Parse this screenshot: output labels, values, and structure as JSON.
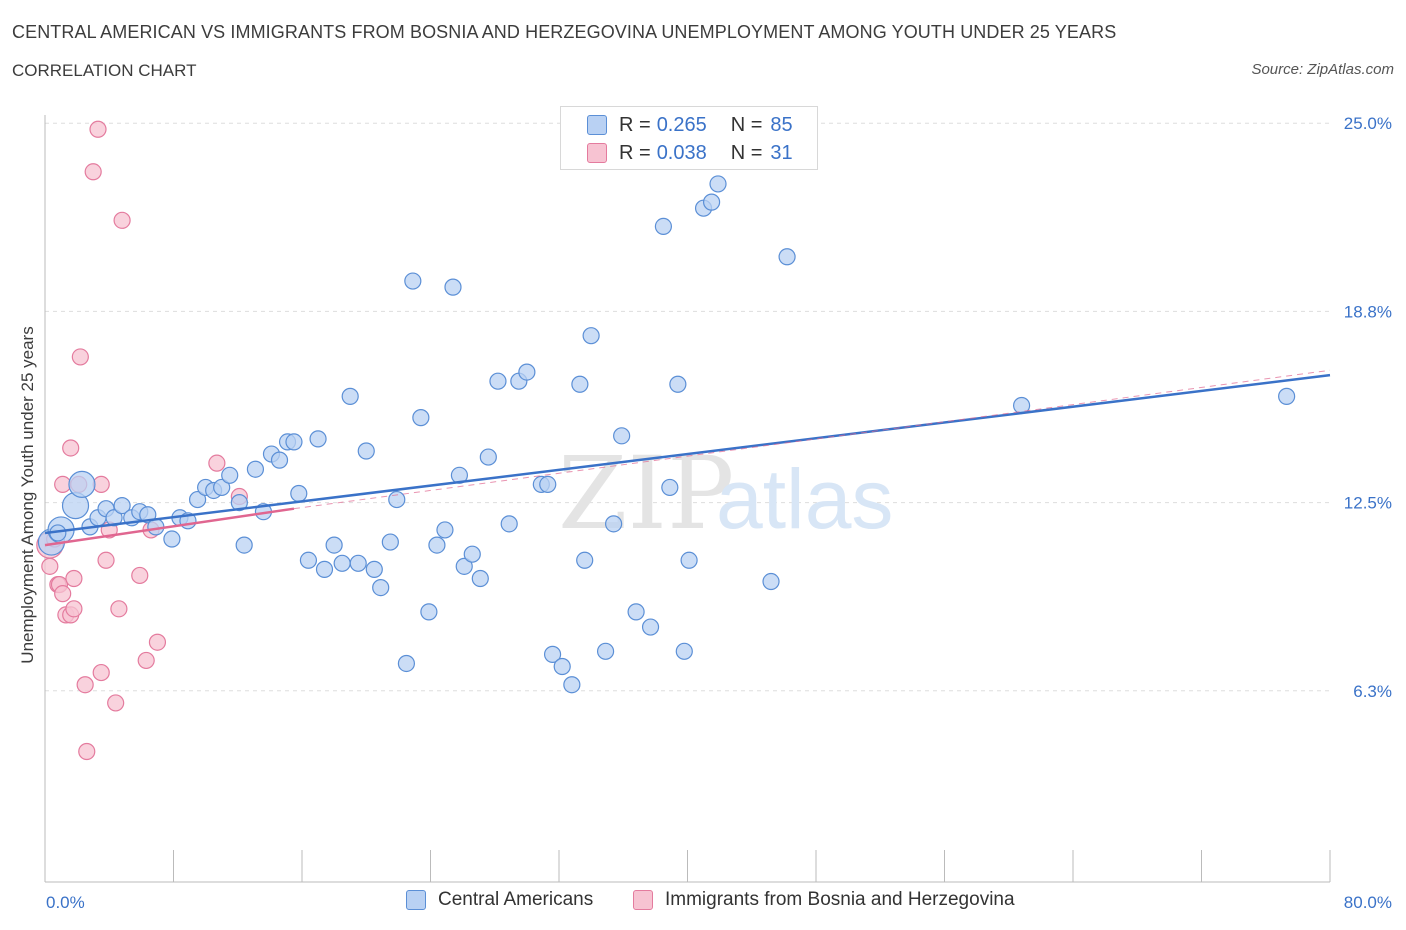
{
  "header": {
    "title": "CENTRAL AMERICAN VS IMMIGRANTS FROM BOSNIA AND HERZEGOVINA UNEMPLOYMENT AMONG YOUTH UNDER 25 YEARS",
    "subtitle": "CORRELATION CHART",
    "source": "Source: ZipAtlas.com"
  },
  "legend": {
    "rows": [
      {
        "r_label": "R =",
        "r_value": "0.265",
        "n_label": "N =",
        "n_value": "85"
      },
      {
        "r_label": "R =",
        "r_value": "0.038",
        "n_label": "N =",
        "n_value": "31"
      }
    ]
  },
  "bottom_legend": {
    "items": [
      "Central Americans",
      "Immigrants from Bosnia and Herzegovina"
    ]
  },
  "colors": {
    "blue_fill": "#b9d1f3",
    "blue_stroke": "#5b8fd6",
    "blue_line": "#3a72c8",
    "pink_fill": "#f7c3d2",
    "pink_stroke": "#e47b9e",
    "pink_line": "#e06690",
    "grid": "#dddddd",
    "axis_text": "#3a72c8"
  },
  "chart_data": {
    "type": "scatter",
    "title": "CENTRAL AMERICAN VS IMMIGRANTS FROM BOSNIA AND HERZEGOVINA UNEMPLOYMENT AMONG YOUTH UNDER 25 YEARS",
    "xlabel": "",
    "ylabel": "Unemployment Among Youth under 25 years",
    "xlim": [
      0,
      80
    ],
    "ylim": [
      0,
      25.6
    ],
    "x_tick_labels": [
      "0.0%",
      "80.0%"
    ],
    "y_ticks": [
      6.3,
      12.5,
      18.8,
      25.0
    ],
    "y_tick_labels": [
      "6.3%",
      "12.5%",
      "18.8%",
      "25.0%"
    ],
    "watermark": "ZIPatlas",
    "series": [
      {
        "name": "Central Americans",
        "R": 0.265,
        "N": 85,
        "trend": {
          "x": [
            0,
            80
          ],
          "y": [
            11.5,
            16.7
          ]
        },
        "points": [
          {
            "x": 0.4,
            "y": 11.2,
            "big": true
          },
          {
            "x": 1.0,
            "y": 11.6,
            "big": true
          },
          {
            "x": 1.9,
            "y": 12.4,
            "big": true
          },
          {
            "x": 2.3,
            "y": 13.1,
            "big": true
          },
          {
            "x": 0.8,
            "y": 11.5
          },
          {
            "x": 2.8,
            "y": 11.7
          },
          {
            "x": 3.3,
            "y": 12.0
          },
          {
            "x": 3.8,
            "y": 12.3
          },
          {
            "x": 4.3,
            "y": 12.0
          },
          {
            "x": 4.8,
            "y": 12.4
          },
          {
            "x": 5.4,
            "y": 12.0
          },
          {
            "x": 5.9,
            "y": 12.2
          },
          {
            "x": 6.4,
            "y": 12.1
          },
          {
            "x": 6.9,
            "y": 11.7
          },
          {
            "x": 7.9,
            "y": 11.3
          },
          {
            "x": 8.4,
            "y": 12.0
          },
          {
            "x": 8.9,
            "y": 11.9
          },
          {
            "x": 9.5,
            "y": 12.6
          },
          {
            "x": 10.0,
            "y": 13.0
          },
          {
            "x": 10.5,
            "y": 12.9
          },
          {
            "x": 11.0,
            "y": 13.0
          },
          {
            "x": 11.5,
            "y": 13.4
          },
          {
            "x": 12.1,
            "y": 12.5
          },
          {
            "x": 12.4,
            "y": 11.1
          },
          {
            "x": 13.1,
            "y": 13.6
          },
          {
            "x": 13.6,
            "y": 12.2
          },
          {
            "x": 14.1,
            "y": 14.1
          },
          {
            "x": 14.6,
            "y": 13.9
          },
          {
            "x": 15.1,
            "y": 14.5
          },
          {
            "x": 15.5,
            "y": 14.5
          },
          {
            "x": 15.8,
            "y": 12.8
          },
          {
            "x": 16.4,
            "y": 10.6
          },
          {
            "x": 17.0,
            "y": 14.6
          },
          {
            "x": 17.4,
            "y": 10.3
          },
          {
            "x": 18.0,
            "y": 11.1
          },
          {
            "x": 18.5,
            "y": 10.5
          },
          {
            "x": 19.0,
            "y": 16.0
          },
          {
            "x": 19.5,
            "y": 10.5
          },
          {
            "x": 20.0,
            "y": 14.2
          },
          {
            "x": 20.5,
            "y": 10.3
          },
          {
            "x": 20.9,
            "y": 9.7
          },
          {
            "x": 21.5,
            "y": 11.2
          },
          {
            "x": 21.9,
            "y": 12.6
          },
          {
            "x": 22.5,
            "y": 7.2
          },
          {
            "x": 22.9,
            "y": 19.8
          },
          {
            "x": 23.4,
            "y": 15.3
          },
          {
            "x": 23.9,
            "y": 8.9
          },
          {
            "x": 24.4,
            "y": 11.1
          },
          {
            "x": 24.9,
            "y": 11.6
          },
          {
            "x": 25.4,
            "y": 19.6
          },
          {
            "x": 25.8,
            "y": 13.4
          },
          {
            "x": 26.1,
            "y": 10.4
          },
          {
            "x": 26.6,
            "y": 10.8
          },
          {
            "x": 27.1,
            "y": 10.0
          },
          {
            "x": 27.6,
            "y": 14.0
          },
          {
            "x": 28.2,
            "y": 16.5
          },
          {
            "x": 28.9,
            "y": 11.8
          },
          {
            "x": 29.5,
            "y": 16.5
          },
          {
            "x": 30.0,
            "y": 16.8
          },
          {
            "x": 30.9,
            "y": 13.1
          },
          {
            "x": 31.3,
            "y": 13.1
          },
          {
            "x": 31.6,
            "y": 7.5
          },
          {
            "x": 32.2,
            "y": 7.1
          },
          {
            "x": 32.8,
            "y": 6.5
          },
          {
            "x": 33.3,
            "y": 16.4
          },
          {
            "x": 33.6,
            "y": 10.6
          },
          {
            "x": 34.0,
            "y": 18.0
          },
          {
            "x": 34.9,
            "y": 7.6
          },
          {
            "x": 35.4,
            "y": 11.8
          },
          {
            "x": 35.9,
            "y": 14.7
          },
          {
            "x": 36.8,
            "y": 8.9
          },
          {
            "x": 37.7,
            "y": 8.4
          },
          {
            "x": 38.5,
            "y": 21.6
          },
          {
            "x": 38.9,
            "y": 13.0
          },
          {
            "x": 39.4,
            "y": 16.4
          },
          {
            "x": 39.8,
            "y": 7.6
          },
          {
            "x": 40.1,
            "y": 10.6
          },
          {
            "x": 41.0,
            "y": 22.2
          },
          {
            "x": 41.5,
            "y": 22.4
          },
          {
            "x": 41.9,
            "y": 23.0
          },
          {
            "x": 45.2,
            "y": 9.9
          },
          {
            "x": 46.2,
            "y": 20.6
          },
          {
            "x": 60.8,
            "y": 15.7
          },
          {
            "x": 77.3,
            "y": 16.0
          }
        ]
      },
      {
        "name": "Immigrants from Bosnia and Herzegovina",
        "R": 0.038,
        "N": 31,
        "trend": {
          "x": [
            0,
            15.5
          ],
          "y": [
            11.1,
            12.3
          ]
        },
        "points": [
          {
            "x": 0.3,
            "y": 11.1,
            "big": true
          },
          {
            "x": 0.6,
            "y": 11.3
          },
          {
            "x": 0.3,
            "y": 10.4
          },
          {
            "x": 0.8,
            "y": 9.8
          },
          {
            "x": 0.9,
            "y": 9.8
          },
          {
            "x": 1.1,
            "y": 9.5
          },
          {
            "x": 1.1,
            "y": 13.1
          },
          {
            "x": 1.3,
            "y": 8.8
          },
          {
            "x": 1.6,
            "y": 14.3
          },
          {
            "x": 1.6,
            "y": 8.8
          },
          {
            "x": 1.8,
            "y": 10.0
          },
          {
            "x": 1.8,
            "y": 9.0
          },
          {
            "x": 2.1,
            "y": 13.1
          },
          {
            "x": 2.2,
            "y": 17.3
          },
          {
            "x": 2.5,
            "y": 6.5
          },
          {
            "x": 2.6,
            "y": 4.3
          },
          {
            "x": 3.0,
            "y": 23.4
          },
          {
            "x": 3.3,
            "y": 24.8
          },
          {
            "x": 3.5,
            "y": 13.1
          },
          {
            "x": 3.5,
            "y": 6.9
          },
          {
            "x": 3.8,
            "y": 10.6
          },
          {
            "x": 4.0,
            "y": 11.6
          },
          {
            "x": 4.4,
            "y": 5.9
          },
          {
            "x": 4.6,
            "y": 9.0
          },
          {
            "x": 4.8,
            "y": 21.8
          },
          {
            "x": 5.9,
            "y": 10.1
          },
          {
            "x": 6.3,
            "y": 7.3
          },
          {
            "x": 6.6,
            "y": 11.6
          },
          {
            "x": 7.0,
            "y": 7.9
          },
          {
            "x": 10.7,
            "y": 13.8
          },
          {
            "x": 12.1,
            "y": 12.7
          }
        ]
      }
    ]
  }
}
